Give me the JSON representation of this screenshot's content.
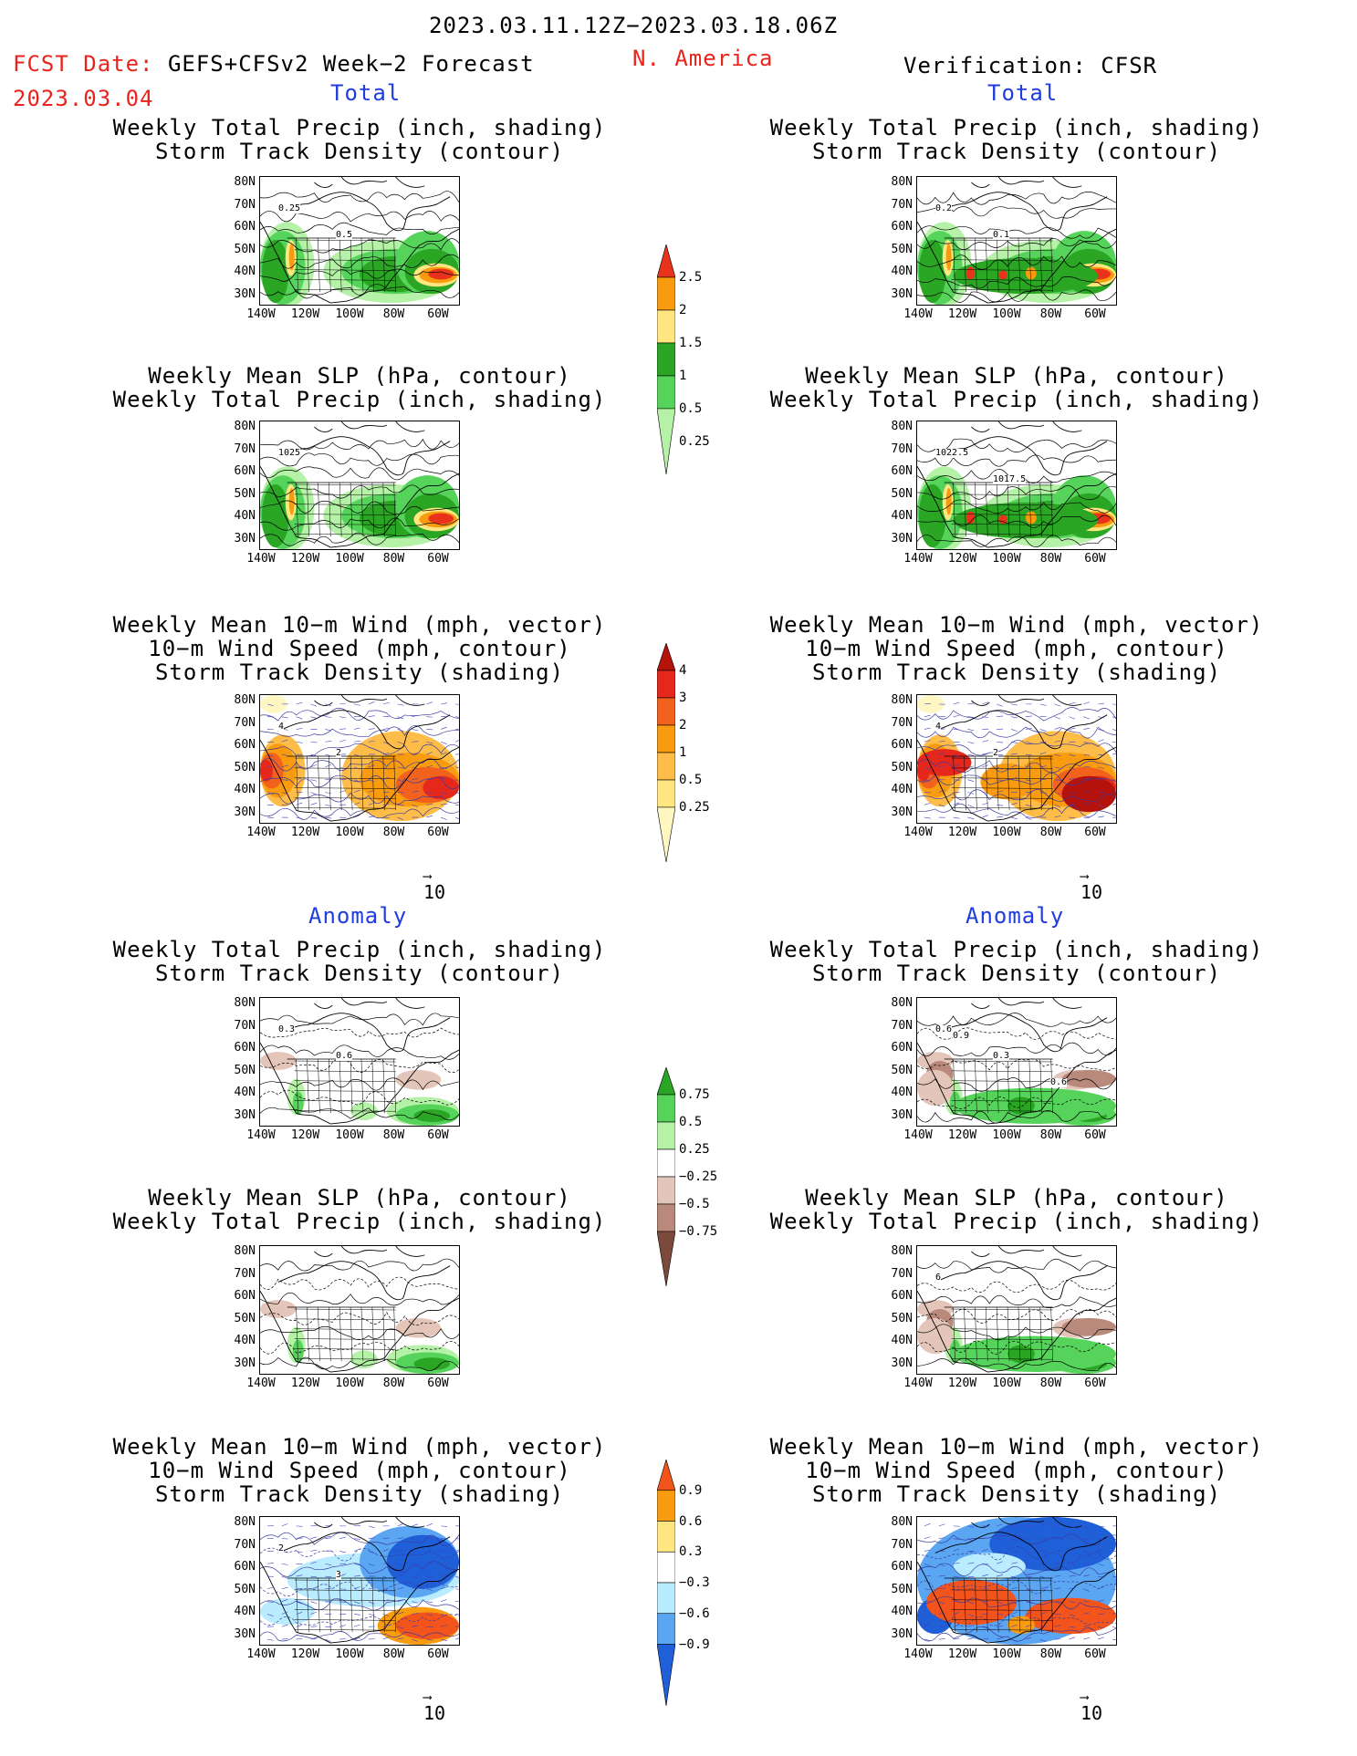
{
  "header": {
    "period": "2023.03.11.12Z−2023.03.18.06Z",
    "fcst_label": "FCST Date: ",
    "model": "GEFS+CFSv2 Week−2 Forecast",
    "region": "N. America",
    "fcst_date": "2023.03.04",
    "verification": "Verification: CFSR"
  },
  "sections": {
    "total": "Total",
    "anomaly": "Anomaly"
  },
  "panel_titles": {
    "precip_storm": [
      "Weekly Total Precip (inch, shading)",
      "Storm Track Density (contour)"
    ],
    "slp_precip": [
      "Weekly Mean SLP (hPa, contour)",
      "Weekly Total Precip (inch, shading)"
    ],
    "wind_storm": [
      "Weekly Mean 10−m Wind (mph, vector)",
      "10−m Wind Speed (mph, contour)",
      "Storm Track Density (shading)"
    ]
  },
  "axes": {
    "lat_ticks": [
      "80N",
      "70N",
      "60N",
      "50N",
      "40N",
      "30N"
    ],
    "lon_ticks": [
      "140W",
      "120W",
      "100W",
      "80W",
      "60W"
    ]
  },
  "vector_ref": "10",
  "contour_labels": {
    "fc_precip": [
      "0.25",
      "0.5"
    ],
    "vf_precip": [
      "0.2",
      "0.1"
    ],
    "fc_slp": [
      "1025"
    ],
    "vf_slp": [
      "1022.5",
      "1017.5"
    ],
    "fc_wind": [
      "4",
      "2"
    ],
    "vf_wind": [
      "4",
      "2"
    ],
    "fc_anom_precip": [
      "0.3",
      "0.6"
    ],
    "vf_anom_precip": [
      "0.6",
      "0.3",
      "0.6",
      "0.9"
    ],
    "fc_anom_slp": [],
    "vf_anom_slp": [
      "6"
    ],
    "fc_anom_wind": [
      "2",
      "3"
    ],
    "vf_anom_wind": []
  },
  "colorbars": {
    "precip": {
      "labels": [
        "2.5",
        "2",
        "1.5",
        "1",
        "0.5",
        "0.25"
      ],
      "colors": [
        "#e8321c",
        "#f99b0e",
        "#ffe680",
        "#2aa524",
        "#56d35a",
        "#b5f2a7"
      ]
    },
    "storm": {
      "labels": [
        "4",
        "3",
        "2",
        "1",
        "0.5",
        "0.25"
      ],
      "colors": [
        "#b4120a",
        "#e5281b",
        "#f2621d",
        "#f99b0e",
        "#fdbd48",
        "#ffe680",
        "#fff7c2"
      ]
    },
    "precip_anom": {
      "labels": [
        "0.75",
        "0.5",
        "0.25",
        "−0.25",
        "−0.5",
        "−0.75"
      ],
      "colors": [
        "#2aa524",
        "#56d35a",
        "#b5f2a7",
        "#ffffff",
        "#e4c5b9",
        "#b98a7c",
        "#7b4a3a"
      ]
    },
    "storm_anom": {
      "labels": [
        "0.9",
        "0.6",
        "0.3",
        "−0.3",
        "−0.6",
        "−0.9"
      ],
      "colors": [
        "#f2541b",
        "#f99b0e",
        "#ffe680",
        "#ffffff",
        "#b9ecff",
        "#5aa6f2",
        "#1f5fd8"
      ]
    }
  },
  "colors": {
    "title_red": "#e8241c",
    "section_blue": "#1f3ce0"
  }
}
